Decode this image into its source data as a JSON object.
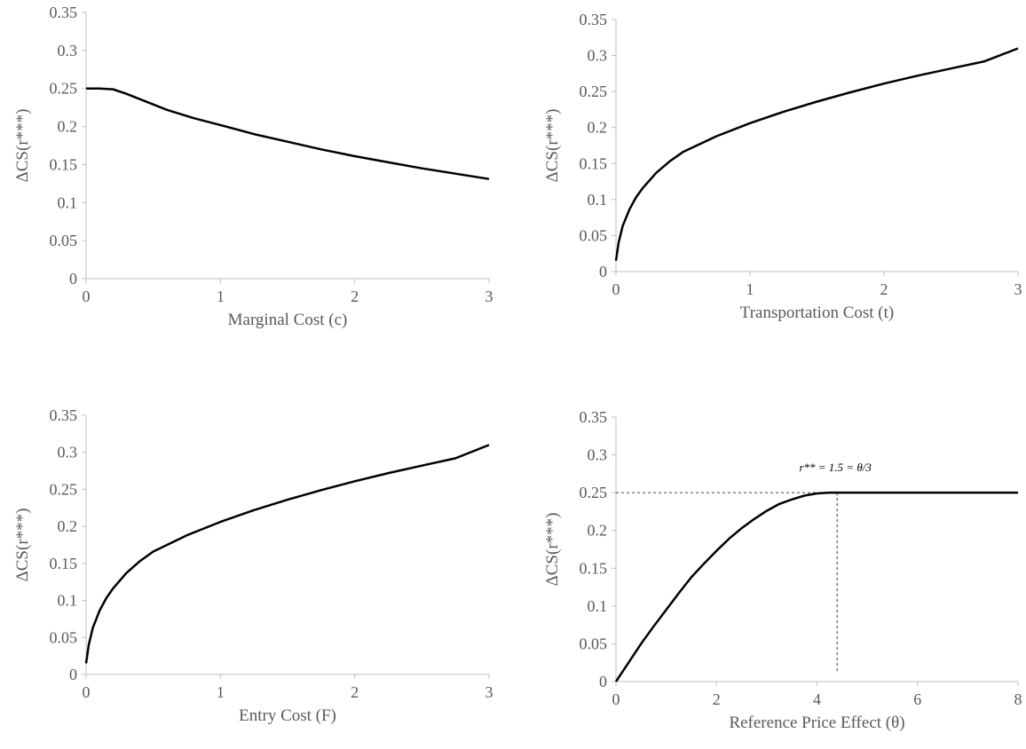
{
  "colors": {
    "line": "#000000",
    "axis": "#bfbfbf",
    "text": "#595959",
    "guide": "#000000"
  },
  "chart_data": [
    {
      "type": "line",
      "xlabel": "Marginal Cost (c)",
      "ylabel": "ΔCS(r***)",
      "xlim": [
        0,
        3
      ],
      "ylim": [
        0,
        0.35
      ],
      "xticks": [
        0,
        1,
        2,
        3
      ],
      "xtick_labels": [
        "0",
        "1",
        "2",
        "3"
      ],
      "yticks": [
        0,
        0.05,
        0.1,
        0.15,
        0.2,
        0.25,
        0.3,
        0.35
      ],
      "ytick_labels": [
        "0",
        "0.05",
        "0.1",
        "0.15",
        "0.2",
        "0.25",
        "0.3",
        "0.35"
      ],
      "grid": false,
      "series": [
        {
          "x": [
            0,
            0.1,
            0.2,
            0.3,
            0.4,
            0.5,
            0.6,
            0.8,
            1.0,
            1.25,
            1.5,
            1.75,
            2.0,
            2.25,
            2.5,
            2.75,
            3.0
          ],
          "y": [
            0.25,
            0.25,
            0.249,
            0.243,
            0.236,
            0.229,
            0.222,
            0.211,
            0.202,
            0.19,
            0.18,
            0.17,
            0.161,
            0.153,
            0.145,
            0.138,
            0.131
          ]
        }
      ]
    },
    {
      "type": "line",
      "xlabel": "Transportation Cost (t)",
      "ylabel": "ΔCS(r***)",
      "xlim": [
        0,
        3
      ],
      "ylim": [
        0,
        0.35
      ],
      "xticks": [
        0,
        1,
        2,
        3
      ],
      "xtick_labels": [
        "0",
        "1",
        "2",
        "3"
      ],
      "yticks": [
        0,
        0.05,
        0.1,
        0.15,
        0.2,
        0.25,
        0.3,
        0.35
      ],
      "ytick_labels": [
        "0",
        "0.05",
        "0.1",
        "0.15",
        "0.2",
        "0.25",
        "0.3",
        "0.35"
      ],
      "grid": false,
      "series": [
        {
          "x": [
            0,
            0.02,
            0.05,
            0.1,
            0.15,
            0.2,
            0.3,
            0.4,
            0.5,
            0.75,
            1.0,
            1.25,
            1.5,
            1.75,
            2.0,
            2.25,
            2.5,
            2.75,
            3.0
          ],
          "y": [
            0.015,
            0.04,
            0.063,
            0.086,
            0.103,
            0.116,
            0.137,
            0.153,
            0.166,
            0.188,
            0.206,
            0.222,
            0.236,
            0.249,
            0.261,
            0.272,
            0.282,
            0.292,
            0.31
          ]
        }
      ]
    },
    {
      "type": "line",
      "xlabel": "Entry Cost (F)",
      "ylabel": "ΔCS(r***)",
      "xlim": [
        0,
        3
      ],
      "ylim": [
        0,
        0.35
      ],
      "xticks": [
        0,
        1,
        2,
        3
      ],
      "xtick_labels": [
        "0",
        "1",
        "2",
        "3"
      ],
      "yticks": [
        0,
        0.05,
        0.1,
        0.15,
        0.2,
        0.25,
        0.3,
        0.35
      ],
      "ytick_labels": [
        "0",
        "0.05",
        "0.1",
        "0.15",
        "0.2",
        "0.25",
        "0.3",
        "0.35"
      ],
      "grid": false,
      "series": [
        {
          "x": [
            0,
            0.02,
            0.05,
            0.1,
            0.15,
            0.2,
            0.3,
            0.4,
            0.5,
            0.75,
            1.0,
            1.25,
            1.5,
            1.75,
            2.0,
            2.25,
            2.5,
            2.75,
            3.0
          ],
          "y": [
            0.015,
            0.04,
            0.063,
            0.086,
            0.103,
            0.116,
            0.137,
            0.153,
            0.166,
            0.188,
            0.206,
            0.222,
            0.236,
            0.249,
            0.261,
            0.272,
            0.282,
            0.292,
            0.31
          ]
        }
      ]
    },
    {
      "type": "line",
      "xlabel": "Reference Price Effect (θ)",
      "ylabel": "ΔCS(r***)",
      "xlim": [
        0,
        8
      ],
      "ylim": [
        0,
        0.35
      ],
      "xticks": [
        0,
        2,
        4,
        6,
        8
      ],
      "xtick_labels": [
        "0",
        "2",
        "4",
        "6",
        "8"
      ],
      "yticks": [
        0,
        0.05,
        0.1,
        0.15,
        0.2,
        0.25,
        0.3,
        0.35
      ],
      "ytick_labels": [
        "0",
        "0.05",
        "0.1",
        "0.15",
        "0.2",
        "0.25",
        "0.3",
        "0.35"
      ],
      "grid": false,
      "series": [
        {
          "x": [
            0,
            0.25,
            0.5,
            0.75,
            1.0,
            1.25,
            1.5,
            1.75,
            2.0,
            2.25,
            2.5,
            2.75,
            3.0,
            3.25,
            3.5,
            3.75,
            4.0,
            4.25,
            4.4,
            5.0,
            6.0,
            7.0,
            8.0
          ],
          "y": [
            0,
            0.025,
            0.05,
            0.073,
            0.095,
            0.117,
            0.138,
            0.156,
            0.173,
            0.189,
            0.203,
            0.215,
            0.226,
            0.235,
            0.241,
            0.246,
            0.249,
            0.25,
            0.25,
            0.25,
            0.25,
            0.25,
            0.25
          ]
        }
      ],
      "annotations": [
        {
          "text": "r** = 1.5 = θ/3",
          "x": 4.4,
          "y": 0.25
        }
      ]
    }
  ]
}
